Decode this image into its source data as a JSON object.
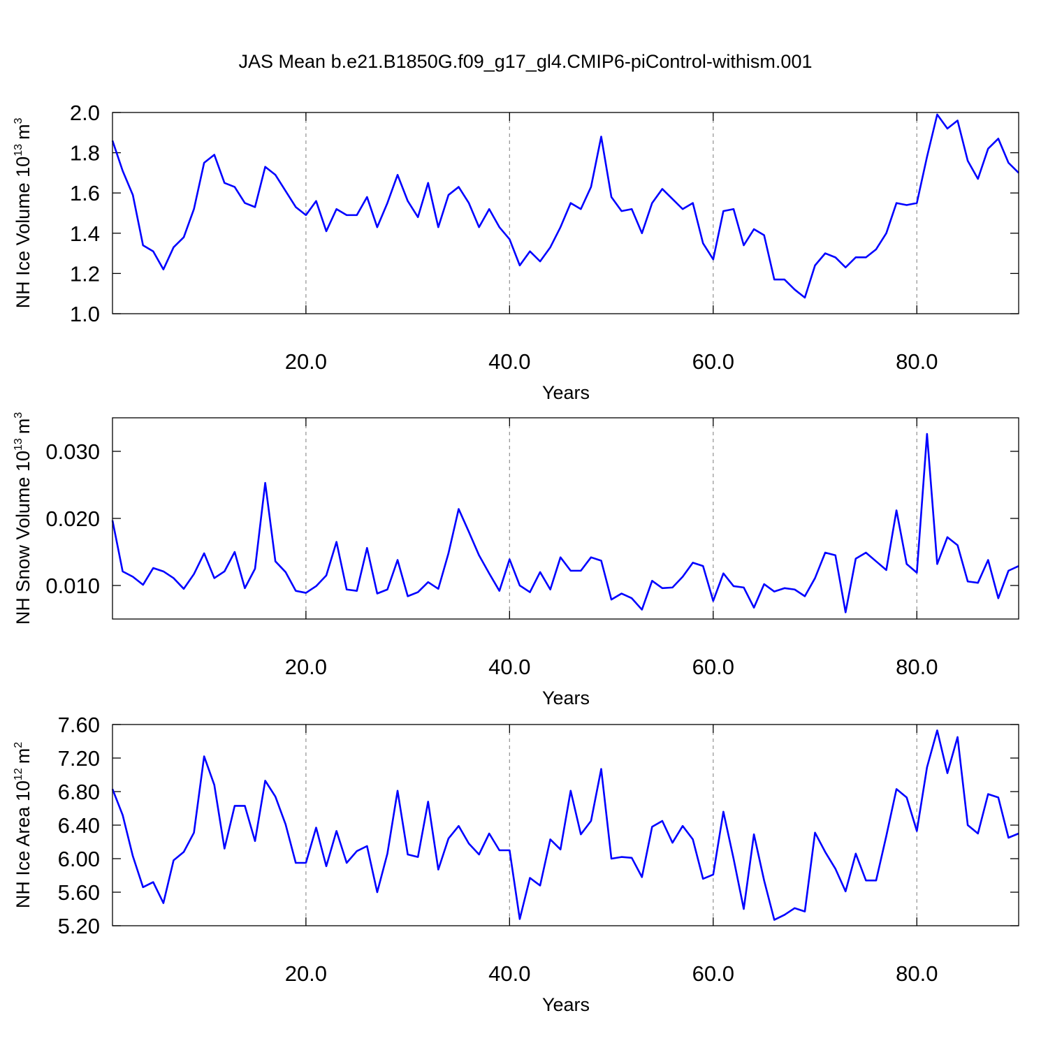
{
  "chart_data": [
    {
      "type": "line",
      "title": "JAS Mean b.e21.B1850G.f09_g17_gl4.CMIP6-piControl-withism.001",
      "xlabel": "Years",
      "ylabel": {
        "text": "NH Ice Volume 10",
        "exponent": "13",
        "unit": "m",
        "unit_exponent": "3"
      },
      "x": [
        1,
        2,
        3,
        4,
        5,
        6,
        7,
        8,
        9,
        10,
        11,
        12,
        13,
        14,
        15,
        16,
        17,
        18,
        19,
        20,
        21,
        22,
        23,
        24,
        25,
        26,
        27,
        28,
        29,
        30,
        31,
        32,
        33,
        34,
        35,
        36,
        37,
        38,
        39,
        40,
        41,
        42,
        43,
        44,
        45,
        46,
        47,
        48,
        49,
        50,
        51,
        52,
        53,
        54,
        55,
        56,
        57,
        58,
        59,
        60,
        61,
        62,
        63,
        64,
        65,
        66,
        67,
        68,
        69,
        70,
        71,
        72,
        73,
        74,
        75,
        76,
        77,
        78,
        79,
        80,
        81,
        82,
        83,
        84,
        85,
        86,
        87,
        88,
        89,
        90
      ],
      "values": [
        1.86,
        1.71,
        1.59,
        1.34,
        1.31,
        1.22,
        1.33,
        1.38,
        1.52,
        1.75,
        1.79,
        1.65,
        1.63,
        1.55,
        1.53,
        1.73,
        1.69,
        1.61,
        1.53,
        1.49,
        1.56,
        1.41,
        1.52,
        1.49,
        1.49,
        1.58,
        1.43,
        1.55,
        1.69,
        1.56,
        1.48,
        1.65,
        1.43,
        1.59,
        1.63,
        1.55,
        1.43,
        1.52,
        1.43,
        1.37,
        1.24,
        1.31,
        1.26,
        1.33,
        1.43,
        1.55,
        1.52,
        1.63,
        1.88,
        1.58,
        1.51,
        1.52,
        1.4,
        1.55,
        1.62,
        1.57,
        1.52,
        1.55,
        1.35,
        1.27,
        1.51,
        1.52,
        1.34,
        1.42,
        1.39,
        1.17,
        1.17,
        1.12,
        1.08,
        1.24,
        1.3,
        1.28,
        1.23,
        1.28,
        1.28,
        1.32,
        1.4,
        1.55,
        1.54,
        1.55,
        1.78,
        1.99,
        1.92,
        1.96,
        1.76,
        1.67,
        1.82,
        1.87,
        1.75,
        1.7
      ],
      "color": "#0000ff",
      "xlim": [
        1,
        90
      ],
      "xticks": [
        {
          "value": 20,
          "label": "20.0"
        },
        {
          "value": 40,
          "label": "40.0"
        },
        {
          "value": 60,
          "label": "60.0"
        },
        {
          "value": 80,
          "label": "80.0"
        }
      ],
      "ylim": [
        1.0,
        2.0
      ],
      "yticks": [
        {
          "value": 1.0,
          "label": "1.0"
        },
        1.2,
        1.4,
        1.6,
        1.8,
        {
          "value": 2.0,
          "label": "2.0"
        }
      ],
      "xgrid": true
    },
    {
      "type": "line",
      "xlabel": "Years",
      "ylabel": {
        "text": "NH Snow Volume 10",
        "exponent": "13",
        "unit": "m",
        "unit_exponent": "3"
      },
      "x": [
        1,
        2,
        3,
        4,
        5,
        6,
        7,
        8,
        9,
        10,
        11,
        12,
        13,
        14,
        15,
        16,
        17,
        18,
        19,
        20,
        21,
        22,
        23,
        24,
        25,
        26,
        27,
        28,
        29,
        30,
        31,
        32,
        33,
        34,
        35,
        36,
        37,
        38,
        39,
        40,
        41,
        42,
        43,
        44,
        45,
        46,
        47,
        48,
        49,
        50,
        51,
        52,
        53,
        54,
        55,
        56,
        57,
        58,
        59,
        60,
        61,
        62,
        63,
        64,
        65,
        66,
        67,
        68,
        69,
        70,
        71,
        72,
        73,
        74,
        75,
        76,
        77,
        78,
        79,
        80,
        81,
        82,
        83,
        84,
        85,
        86,
        87,
        88,
        89,
        90
      ],
      "values": [
        0.0197,
        0.0121,
        0.0113,
        0.0101,
        0.0126,
        0.0121,
        0.0111,
        0.0095,
        0.0117,
        0.0148,
        0.0111,
        0.0121,
        0.015,
        0.0096,
        0.0125,
        0.0253,
        0.0136,
        0.012,
        0.0092,
        0.0089,
        0.0099,
        0.0115,
        0.0165,
        0.0094,
        0.0092,
        0.0156,
        0.0088,
        0.0094,
        0.0138,
        0.0084,
        0.009,
        0.0105,
        0.0095,
        0.0148,
        0.0214,
        0.018,
        0.0145,
        0.0118,
        0.0092,
        0.0139,
        0.01,
        0.009,
        0.012,
        0.0094,
        0.0142,
        0.0122,
        0.0122,
        0.0142,
        0.0137,
        0.0079,
        0.0088,
        0.0081,
        0.0064,
        0.0107,
        0.0096,
        0.0097,
        0.0113,
        0.0134,
        0.0129,
        0.0077,
        0.0118,
        0.0099,
        0.0097,
        0.0067,
        0.0102,
        0.0091,
        0.0096,
        0.0094,
        0.0084,
        0.0111,
        0.0149,
        0.0145,
        0.006,
        0.014,
        0.0149,
        0.0136,
        0.0123,
        0.0212,
        0.0132,
        0.0119,
        0.0326,
        0.0132,
        0.0172,
        0.016,
        0.0106,
        0.0104,
        0.0138,
        0.0081,
        0.0122,
        0.0129
      ],
      "color": "#0000ff",
      "xlim": [
        1,
        90
      ],
      "xticks": [
        {
          "value": 20,
          "label": "20.0"
        },
        {
          "value": 40,
          "label": "40.0"
        },
        {
          "value": 60,
          "label": "60.0"
        },
        {
          "value": 80,
          "label": "80.0"
        }
      ],
      "ylim": [
        0.005,
        0.035
      ],
      "yticks": [
        {
          "value": 0.01,
          "label": "0.010"
        },
        {
          "value": 0.02,
          "label": "0.020"
        },
        {
          "value": 0.03,
          "label": "0.030"
        }
      ],
      "xgrid": true
    },
    {
      "type": "line",
      "xlabel": "Years",
      "ylabel": {
        "text": "NH Ice Area 10",
        "exponent": "12",
        "unit": "m",
        "unit_exponent": "2"
      },
      "x": [
        1,
        2,
        3,
        4,
        5,
        6,
        7,
        8,
        9,
        10,
        11,
        12,
        13,
        14,
        15,
        16,
        17,
        18,
        19,
        20,
        21,
        22,
        23,
        24,
        25,
        26,
        27,
        28,
        29,
        30,
        31,
        32,
        33,
        34,
        35,
        36,
        37,
        38,
        39,
        40,
        41,
        42,
        43,
        44,
        45,
        46,
        47,
        48,
        49,
        50,
        51,
        52,
        53,
        54,
        55,
        56,
        57,
        58,
        59,
        60,
        61,
        62,
        63,
        64,
        65,
        66,
        67,
        68,
        69,
        70,
        71,
        72,
        73,
        74,
        75,
        76,
        77,
        78,
        79,
        80,
        81,
        82,
        83,
        84,
        85,
        86,
        87,
        88,
        89,
        90
      ],
      "values": [
        6.83,
        6.52,
        6.03,
        5.66,
        5.72,
        5.47,
        5.98,
        6.08,
        6.31,
        7.22,
        6.88,
        6.12,
        6.63,
        6.63,
        6.21,
        6.93,
        6.74,
        6.41,
        5.95,
        5.95,
        6.37,
        5.91,
        6.33,
        5.95,
        6.09,
        6.15,
        5.6,
        6.06,
        6.81,
        6.05,
        6.02,
        6.68,
        5.87,
        6.24,
        6.39,
        6.18,
        6.05,
        6.3,
        6.1,
        6.1,
        5.28,
        5.77,
        5.68,
        6.23,
        6.11,
        6.81,
        6.29,
        6.45,
        7.07,
        6.0,
        6.02,
        6.01,
        5.78,
        6.38,
        6.45,
        6.19,
        6.39,
        6.23,
        5.76,
        5.81,
        6.56,
        6.0,
        5.4,
        6.29,
        5.74,
        5.27,
        5.33,
        5.41,
        5.37,
        6.31,
        6.08,
        5.88,
        5.61,
        6.06,
        5.74,
        5.74,
        6.27,
        6.83,
        6.73,
        6.33,
        7.09,
        7.53,
        7.02,
        7.45,
        6.4,
        6.3,
        6.77,
        6.73,
        6.25,
        6.3
      ],
      "color": "#0000ff",
      "xlim": [
        1,
        90
      ],
      "xticks": [
        {
          "value": 20,
          "label": "20.0"
        },
        {
          "value": 40,
          "label": "40.0"
        },
        {
          "value": 60,
          "label": "60.0"
        },
        {
          "value": 80,
          "label": "80.0"
        }
      ],
      "ylim": [
        5.2,
        7.6
      ],
      "yticks": [
        {
          "value": 5.2,
          "label": "5.20"
        },
        {
          "value": 5.6,
          "label": "5.60"
        },
        {
          "value": 6.0,
          "label": "6.00"
        },
        {
          "value": 6.4,
          "label": "6.40"
        },
        {
          "value": 6.8,
          "label": "6.80"
        },
        {
          "value": 7.2,
          "label": "7.20"
        },
        {
          "value": 7.6,
          "label": "7.60"
        }
      ],
      "xgrid": true
    }
  ]
}
